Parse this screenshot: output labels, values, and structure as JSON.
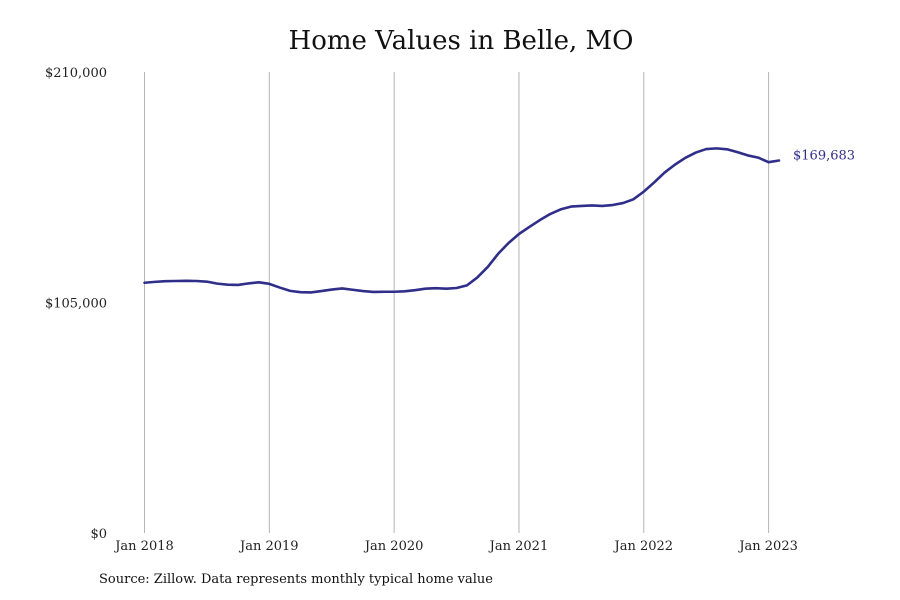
{
  "chart_data": {
    "type": "line",
    "title": "Home Values in Belle, MO",
    "xlabel": "",
    "ylabel": "",
    "x_tick_labels": [
      "Jan 2018",
      "Jan 2019",
      "Jan 2020",
      "Jan 2021",
      "Jan 2022",
      "Jan 2023"
    ],
    "y_tick_labels": [
      "$0",
      "$105,000",
      "$210,000"
    ],
    "y_ticks": [
      0,
      105000,
      210000
    ],
    "ylim": [
      0,
      210000
    ],
    "xlim": [
      "2018-01",
      "2023-02"
    ],
    "grid": "vertical",
    "line_color": "#2f2f8a",
    "end_label": "$169,683",
    "series": [
      {
        "x": [
          "2018-01",
          "2018-02",
          "2018-03",
          "2018-04",
          "2018-05",
          "2018-06",
          "2018-07",
          "2018-08",
          "2018-09",
          "2018-10",
          "2018-11",
          "2018-12",
          "2019-01",
          "2019-02",
          "2019-03",
          "2019-04",
          "2019-05",
          "2019-06",
          "2019-07",
          "2019-08",
          "2019-09",
          "2019-10",
          "2019-11",
          "2019-12",
          "2020-01",
          "2020-02",
          "2020-03",
          "2020-04",
          "2020-05",
          "2020-06",
          "2020-07",
          "2020-08",
          "2020-09",
          "2020-10",
          "2020-11",
          "2020-12",
          "2021-01",
          "2021-02",
          "2021-03",
          "2021-04",
          "2021-05",
          "2021-06",
          "2021-07",
          "2021-08",
          "2021-09",
          "2021-10",
          "2021-11",
          "2021-12",
          "2022-01",
          "2022-02",
          "2022-03",
          "2022-04",
          "2022-05",
          "2022-06",
          "2022-07",
          "2022-08",
          "2022-09",
          "2022-10",
          "2022-11",
          "2022-12",
          "2023-01",
          "2023-02"
        ],
        "values": [
          114000,
          114400,
          114700,
          114800,
          114900,
          114800,
          114500,
          113600,
          113100,
          113000,
          113700,
          114200,
          113500,
          111800,
          110300,
          109700,
          109600,
          110200,
          110900,
          111400,
          110800,
          110200,
          109800,
          109900,
          109900,
          110100,
          110600,
          111300,
          111500,
          111300,
          111600,
          112800,
          116400,
          121200,
          127200,
          132100,
          136200,
          139400,
          142500,
          145300,
          147400,
          148700,
          149000,
          149200,
          149000,
          149400,
          150300,
          152000,
          155500,
          159700,
          164200,
          167800,
          170900,
          173300,
          174900,
          175200,
          174800,
          173500,
          172000,
          171000,
          168900,
          169683
        ]
      }
    ]
  },
  "source_note": "Source: Zillow. Data represents monthly typical home value"
}
